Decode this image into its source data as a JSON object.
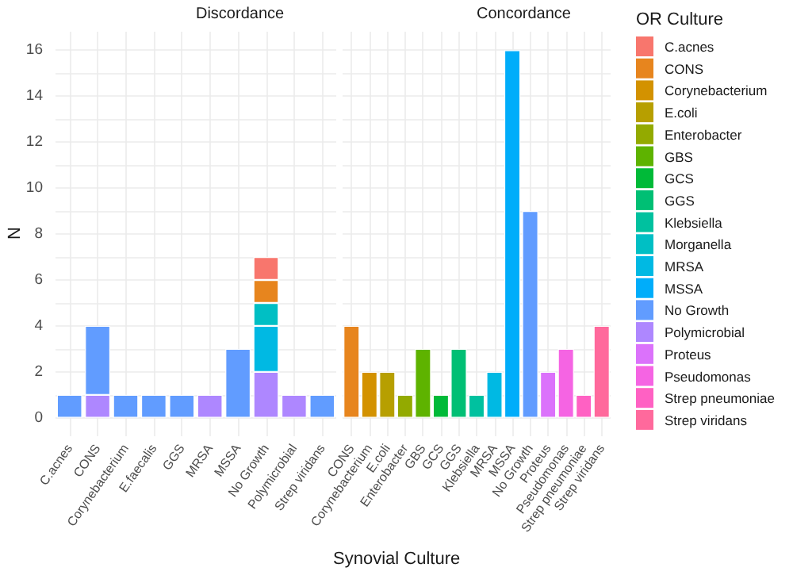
{
  "chart_data": [
    {
      "type": "bar",
      "title": "Discordance",
      "xlabel": "Synovial Culture",
      "ylabel": "N",
      "stacked": true,
      "grid": true,
      "legend": "right",
      "categories": [
        "C.acnes",
        "CONS",
        "Corynebacterium",
        "E.faecalis",
        "GGS",
        "MRSA",
        "MSSA",
        "No Growth",
        "Polymicrobial",
        "Strep viridans"
      ],
      "ylim": [
        -0.8,
        16.8
      ],
      "yticks": [
        0,
        {
          "value": 1,
          "label": null
        },
        2,
        {
          "value": 3,
          "label": null
        },
        4,
        {
          "value": 5,
          "label": null
        },
        6,
        {
          "value": 7,
          "label": null
        },
        8,
        {
          "value": 9,
          "label": null
        },
        10,
        {
          "value": 11,
          "label": null
        },
        12,
        {
          "value": 13,
          "label": null
        },
        14,
        {
          "value": 15,
          "label": null
        },
        16
      ],
      "series": [
        {
          "name": "Polymicrobial",
          "color": "#ae87ff",
          "values": [
            null,
            1,
            null,
            null,
            null,
            1,
            null,
            2,
            1,
            null
          ]
        },
        {
          "name": "No Growth",
          "color": "#619cff",
          "values": [
            1,
            3,
            1,
            1,
            1,
            null,
            3,
            null,
            null,
            1
          ]
        },
        {
          "name": "MRSA",
          "color": "#00b9e3",
          "values": [
            null,
            null,
            null,
            null,
            null,
            null,
            null,
            2,
            null,
            null
          ]
        },
        {
          "name": "Morganella",
          "color": "#00bfc4",
          "values": [
            null,
            null,
            null,
            null,
            null,
            null,
            null,
            1,
            null,
            null
          ]
        },
        {
          "name": "CONS",
          "color": "#e7851e",
          "values": [
            null,
            null,
            null,
            null,
            null,
            null,
            null,
            1,
            null,
            null
          ]
        },
        {
          "name": "C.acnes",
          "color": "#f8766d",
          "values": [
            null,
            null,
            null,
            null,
            null,
            null,
            null,
            1,
            null,
            null
          ]
        }
      ]
    },
    {
      "type": "bar",
      "title": "Concordance",
      "legend_title": "OR Culture",
      "stacked": true,
      "grid": true,
      "legend": "right",
      "tick_labels": "x",
      "categories": [
        "CONS",
        "Corynebacterium",
        "E.coli",
        "Enterobacter",
        "GBS",
        "GCS",
        "GGS",
        "Klebsiella",
        "MRSA",
        "MSSA",
        "No Growth",
        "Proteus",
        "Pseudomonas",
        "Strep pneumoniae",
        "Strep viridans"
      ],
      "ylim": [
        -0.8,
        16.8
      ],
      "yticks": [
        0,
        {
          "value": 1,
          "label": null
        },
        2,
        {
          "value": 3,
          "label": null
        },
        4,
        {
          "value": 5,
          "label": null
        },
        6,
        {
          "value": 7,
          "label": null
        },
        8,
        {
          "value": 9,
          "label": null
        },
        10,
        {
          "value": 11,
          "label": null
        },
        12,
        {
          "value": 13,
          "label": null
        },
        14,
        {
          "value": 15,
          "label": null
        },
        16
      ],
      "series": [
        {
          "name": "Strep viridans",
          "color": "#ff699c",
          "values": [
            null,
            null,
            null,
            null,
            null,
            null,
            null,
            null,
            null,
            null,
            null,
            null,
            null,
            null,
            4
          ]
        },
        {
          "name": "Strep pneumoniae",
          "color": "#ff61c3",
          "values": [
            null,
            null,
            null,
            null,
            null,
            null,
            null,
            null,
            null,
            null,
            null,
            null,
            null,
            1,
            null
          ]
        },
        {
          "name": "Pseudomonas",
          "color": "#f564e3",
          "values": [
            null,
            null,
            null,
            null,
            null,
            null,
            null,
            null,
            null,
            null,
            null,
            null,
            3,
            null,
            null
          ]
        },
        {
          "name": "Proteus",
          "color": "#db72fb",
          "values": [
            null,
            null,
            null,
            null,
            null,
            null,
            null,
            null,
            null,
            null,
            null,
            2,
            null,
            null,
            null
          ]
        },
        {
          "name": "No Growth",
          "color": "#619cff",
          "values": [
            null,
            null,
            null,
            null,
            null,
            null,
            null,
            null,
            null,
            null,
            9,
            null,
            null,
            null,
            null
          ]
        },
        {
          "name": "MSSA",
          "color": "#00adfa",
          "values": [
            null,
            null,
            null,
            null,
            null,
            null,
            null,
            null,
            null,
            16,
            null,
            null,
            null,
            null,
            null
          ]
        },
        {
          "name": "MRSA",
          "color": "#00b9e3",
          "values": [
            null,
            null,
            null,
            null,
            null,
            null,
            null,
            null,
            2,
            null,
            null,
            null,
            null,
            null,
            null
          ]
        },
        {
          "name": "Klebsiella",
          "color": "#00c19f",
          "values": [
            null,
            null,
            null,
            null,
            null,
            null,
            null,
            1,
            null,
            null,
            null,
            null,
            null,
            null,
            null
          ]
        },
        {
          "name": "GGS",
          "color": "#00bf74",
          "values": [
            null,
            null,
            null,
            null,
            null,
            null,
            3,
            null,
            null,
            null,
            null,
            null,
            null,
            null,
            null
          ]
        },
        {
          "name": "GCS",
          "color": "#00ba38",
          "values": [
            null,
            null,
            null,
            null,
            null,
            1,
            null,
            null,
            null,
            null,
            null,
            null,
            null,
            null,
            null
          ]
        },
        {
          "name": "GBS",
          "color": "#5eb300",
          "values": [
            null,
            null,
            null,
            null,
            3,
            null,
            null,
            null,
            null,
            null,
            null,
            null,
            null,
            null,
            null
          ]
        },
        {
          "name": "Enterobacter",
          "color": "#93aa00",
          "values": [
            null,
            null,
            null,
            1,
            null,
            null,
            null,
            null,
            null,
            null,
            null,
            null,
            null,
            null,
            null
          ]
        },
        {
          "name": "E.coli",
          "color": "#b79f00",
          "values": [
            null,
            null,
            2,
            null,
            null,
            null,
            null,
            null,
            null,
            null,
            null,
            null,
            null,
            null,
            null
          ]
        },
        {
          "name": "Corynebacterium",
          "color": "#d39200",
          "values": [
            null,
            2,
            null,
            null,
            null,
            null,
            null,
            null,
            null,
            null,
            null,
            null,
            null,
            null,
            null
          ]
        },
        {
          "name": "CONS",
          "color": "#e7851e",
          "values": [
            4,
            null,
            null,
            null,
            null,
            null,
            null,
            null,
            null,
            null,
            null,
            null,
            null,
            null,
            null
          ]
        }
      ]
    }
  ]
}
